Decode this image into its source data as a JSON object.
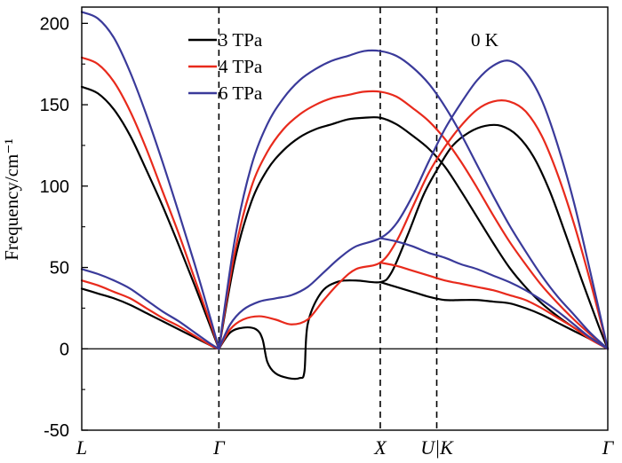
{
  "chart_data": {
    "type": "line",
    "title": "",
    "ylabel": "Frequency/cm⁻¹",
    "xlabel": "",
    "ylim": [
      -50,
      210
    ],
    "yticks": [
      -50,
      0,
      50,
      100,
      150,
      200
    ],
    "x_high_symmetry_points": [
      {
        "label": "L",
        "pos": 0
      },
      {
        "label": "Γ",
        "pos": 0.85
      },
      {
        "label": "X",
        "pos": 1.85
      },
      {
        "label": "U|K",
        "pos": 2.2
      },
      {
        "label": "Γ",
        "pos": 3.26
      }
    ],
    "annotation": "0 K",
    "grid": false,
    "legend_position": "top-center",
    "series": [
      {
        "name": "3 TPa",
        "color": "#000000",
        "branches": [
          [
            [
              0,
              161
            ],
            [
              0.1,
              157
            ],
            [
              0.2,
              147
            ],
            [
              0.3,
              131
            ],
            [
              0.4,
              110
            ],
            [
              0.5,
              88
            ],
            [
              0.6,
              64
            ],
            [
              0.7,
              39
            ],
            [
              0.8,
              13
            ],
            [
              0.85,
              0
            ]
          ],
          [
            [
              0,
              37
            ],
            [
              0.1,
              34
            ],
            [
              0.2,
              31
            ],
            [
              0.3,
              27
            ],
            [
              0.4,
              22
            ],
            [
              0.5,
              17
            ],
            [
              0.6,
              12
            ],
            [
              0.7,
              7
            ],
            [
              0.8,
              2
            ],
            [
              0.85,
              0
            ]
          ],
          [
            [
              0.85,
              0
            ],
            [
              0.95,
              55
            ],
            [
              1.05,
              90
            ],
            [
              1.15,
              110
            ],
            [
              1.25,
              122
            ],
            [
              1.35,
              130
            ],
            [
              1.45,
              135
            ],
            [
              1.55,
              138
            ],
            [
              1.65,
              141
            ],
            [
              1.75,
              142
            ],
            [
              1.85,
              142
            ],
            [
              1.95,
              138
            ],
            [
              2.05,
              131
            ],
            [
              2.15,
              123
            ],
            [
              2.25,
              112
            ],
            [
              2.35,
              97
            ],
            [
              2.45,
              81
            ],
            [
              2.55,
              65
            ],
            [
              2.65,
              50
            ],
            [
              2.75,
              38
            ],
            [
              2.85,
              28
            ],
            [
              2.95,
              20
            ],
            [
              3.05,
              13
            ],
            [
              3.15,
              7
            ],
            [
              3.26,
              0
            ]
          ],
          [
            [
              0.85,
              0
            ],
            [
              0.92,
              10
            ],
            [
              1.0,
              13
            ],
            [
              1.08,
              12
            ],
            [
              1.12,
              6
            ],
            [
              1.15,
              -8
            ],
            [
              1.2,
              -15
            ],
            [
              1.28,
              -18
            ],
            [
              1.35,
              -18
            ],
            [
              1.38,
              -14
            ],
            [
              1.4,
              15
            ],
            [
              1.48,
              34
            ],
            [
              1.58,
              41
            ],
            [
              1.7,
              42
            ],
            [
              1.85,
              41
            ],
            [
              1.92,
              47
            ],
            [
              2.02,
              70
            ],
            [
              2.12,
              95
            ],
            [
              2.22,
              113
            ],
            [
              2.3,
              125
            ],
            [
              2.4,
              133
            ],
            [
              2.5,
              137
            ],
            [
              2.6,
              137
            ],
            [
              2.7,
              131
            ],
            [
              2.8,
              118
            ],
            [
              2.9,
              97
            ],
            [
              3.0,
              70
            ],
            [
              3.1,
              42
            ],
            [
              3.2,
              15
            ],
            [
              3.26,
              0
            ]
          ],
          [
            [
              1.85,
              41
            ],
            [
              1.95,
              38
            ],
            [
              2.05,
              35
            ],
            [
              2.15,
              32
            ],
            [
              2.25,
              30
            ],
            [
              2.35,
              30
            ],
            [
              2.45,
              30
            ],
            [
              2.55,
              29
            ],
            [
              2.65,
              28
            ],
            [
              2.75,
              25
            ],
            [
              2.85,
              21
            ],
            [
              2.95,
              16
            ],
            [
              3.05,
              11
            ],
            [
              3.15,
              6
            ],
            [
              3.26,
              0
            ]
          ]
        ]
      },
      {
        "name": "4 TPa",
        "color": "#e82a1c",
        "branches": [
          [
            [
              0,
              179
            ],
            [
              0.1,
              175
            ],
            [
              0.2,
              164
            ],
            [
              0.3,
              146
            ],
            [
              0.4,
              123
            ],
            [
              0.5,
              97
            ],
            [
              0.6,
              71
            ],
            [
              0.7,
              43
            ],
            [
              0.8,
              15
            ],
            [
              0.85,
              0
            ]
          ],
          [
            [
              0,
              42
            ],
            [
              0.1,
              39
            ],
            [
              0.2,
              35
            ],
            [
              0.3,
              31
            ],
            [
              0.4,
              25
            ],
            [
              0.5,
              19
            ],
            [
              0.6,
              14
            ],
            [
              0.7,
              8
            ],
            [
              0.8,
              2
            ],
            [
              0.85,
              0
            ]
          ],
          [
            [
              0.85,
              0
            ],
            [
              0.95,
              60
            ],
            [
              1.05,
              99
            ],
            [
              1.15,
              121
            ],
            [
              1.25,
              135
            ],
            [
              1.35,
              144
            ],
            [
              1.45,
              150
            ],
            [
              1.55,
              154
            ],
            [
              1.65,
              156
            ],
            [
              1.75,
              158
            ],
            [
              1.85,
              158
            ],
            [
              1.95,
              155
            ],
            [
              2.05,
              148
            ],
            [
              2.15,
              140
            ],
            [
              2.25,
              129
            ],
            [
              2.35,
              115
            ],
            [
              2.45,
              99
            ],
            [
              2.55,
              82
            ],
            [
              2.65,
              66
            ],
            [
              2.75,
              52
            ],
            [
              2.85,
              39
            ],
            [
              2.95,
              28
            ],
            [
              3.05,
              18
            ],
            [
              3.15,
              9
            ],
            [
              3.26,
              0
            ]
          ],
          [
            [
              0.85,
              0
            ],
            [
              0.92,
              12
            ],
            [
              1.0,
              18
            ],
            [
              1.1,
              20
            ],
            [
              1.2,
              18
            ],
            [
              1.3,
              15
            ],
            [
              1.4,
              18
            ],
            [
              1.5,
              30
            ],
            [
              1.6,
              41
            ],
            [
              1.7,
              49
            ],
            [
              1.85,
              53
            ],
            [
              1.95,
              66
            ],
            [
              2.05,
              87
            ],
            [
              2.15,
              108
            ],
            [
              2.25,
              124
            ],
            [
              2.35,
              137
            ],
            [
              2.45,
              147
            ],
            [
              2.55,
              152
            ],
            [
              2.65,
              152
            ],
            [
              2.75,
              146
            ],
            [
              2.85,
              131
            ],
            [
              2.95,
              107
            ],
            [
              3.05,
              77
            ],
            [
              3.15,
              42
            ],
            [
              3.26,
              0
            ]
          ],
          [
            [
              1.85,
              53
            ],
            [
              1.95,
              51
            ],
            [
              2.05,
              48
            ],
            [
              2.15,
              45
            ],
            [
              2.25,
              42
            ],
            [
              2.35,
              40
            ],
            [
              2.45,
              38
            ],
            [
              2.55,
              36
            ],
            [
              2.65,
              33
            ],
            [
              2.75,
              30
            ],
            [
              2.85,
              25
            ],
            [
              2.95,
              19
            ],
            [
              3.05,
              13
            ],
            [
              3.15,
              6
            ],
            [
              3.26,
              0
            ]
          ]
        ]
      },
      {
        "name": "6 TPa",
        "color": "#3a3a9a",
        "branches": [
          [
            [
              0,
              207
            ],
            [
              0.1,
              203
            ],
            [
              0.2,
              191
            ],
            [
              0.3,
              170
            ],
            [
              0.4,
              144
            ],
            [
              0.5,
              115
            ],
            [
              0.6,
              84
            ],
            [
              0.7,
              52
            ],
            [
              0.8,
              18
            ],
            [
              0.85,
              0
            ]
          ],
          [
            [
              0,
              49
            ],
            [
              0.1,
              46
            ],
            [
              0.2,
              42
            ],
            [
              0.3,
              37
            ],
            [
              0.4,
              30
            ],
            [
              0.5,
              23
            ],
            [
              0.6,
              17
            ],
            [
              0.7,
              10
            ],
            [
              0.8,
              3
            ],
            [
              0.85,
              0
            ]
          ],
          [
            [
              0.85,
              0
            ],
            [
              0.95,
              68
            ],
            [
              1.05,
              112
            ],
            [
              1.15,
              138
            ],
            [
              1.25,
              154
            ],
            [
              1.35,
              165
            ],
            [
              1.45,
              172
            ],
            [
              1.55,
              177
            ],
            [
              1.65,
              180
            ],
            [
              1.75,
              183
            ],
            [
              1.85,
              183
            ],
            [
              1.95,
              180
            ],
            [
              2.05,
              173
            ],
            [
              2.15,
              163
            ],
            [
              2.25,
              149
            ],
            [
              2.35,
              132
            ],
            [
              2.45,
              113
            ],
            [
              2.55,
              94
            ],
            [
              2.65,
              76
            ],
            [
              2.75,
              60
            ],
            [
              2.85,
              45
            ],
            [
              2.95,
              32
            ],
            [
              3.05,
              21
            ],
            [
              3.15,
              10
            ],
            [
              3.26,
              0
            ]
          ],
          [
            [
              0.85,
              0
            ],
            [
              0.92,
              15
            ],
            [
              1.0,
              24
            ],
            [
              1.1,
              29
            ],
            [
              1.2,
              31
            ],
            [
              1.3,
              33
            ],
            [
              1.4,
              38
            ],
            [
              1.5,
              47
            ],
            [
              1.6,
              56
            ],
            [
              1.7,
              63
            ],
            [
              1.85,
              68
            ],
            [
              1.95,
              77
            ],
            [
              2.05,
              94
            ],
            [
              2.15,
              115
            ],
            [
              2.25,
              135
            ],
            [
              2.35,
              151
            ],
            [
              2.45,
              165
            ],
            [
              2.55,
              174
            ],
            [
              2.65,
              177
            ],
            [
              2.75,
              170
            ],
            [
              2.85,
              153
            ],
            [
              2.95,
              125
            ],
            [
              3.05,
              90
            ],
            [
              3.15,
              48
            ],
            [
              3.26,
              0
            ]
          ],
          [
            [
              1.85,
              68
            ],
            [
              1.95,
              66
            ],
            [
              2.05,
              63
            ],
            [
              2.15,
              59
            ],
            [
              2.25,
              56
            ],
            [
              2.35,
              52
            ],
            [
              2.45,
              49
            ],
            [
              2.55,
              45
            ],
            [
              2.65,
              41
            ],
            [
              2.75,
              36
            ],
            [
              2.85,
              30
            ],
            [
              2.95,
              23
            ],
            [
              3.05,
              15
            ],
            [
              3.15,
              7
            ],
            [
              3.26,
              0
            ]
          ]
        ]
      }
    ]
  }
}
